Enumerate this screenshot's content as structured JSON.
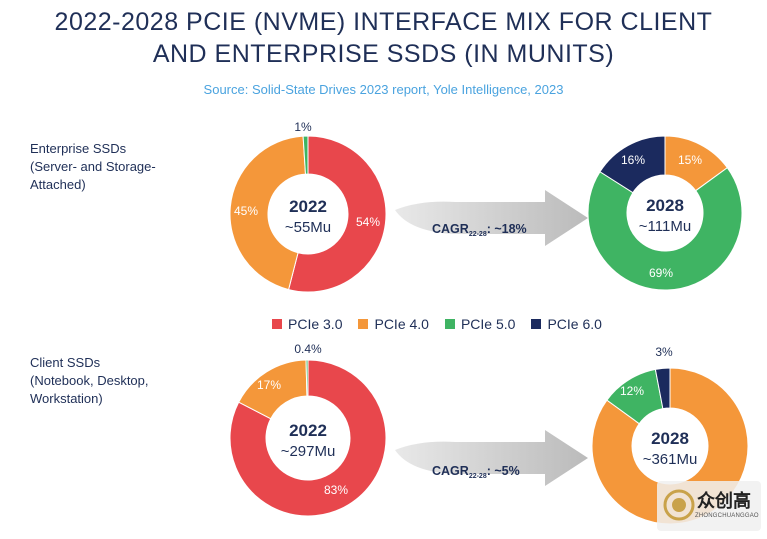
{
  "header": {
    "title_line1": "2022-2028 PCIE (NVME) INTERFACE MIX FOR CLIENT",
    "title_line2": "AND ENTERPRISE SSDS (IN MUNITS)",
    "source": "Source: Solid-State Drives 2023 report, Yole Intelligence, 2023"
  },
  "segments": {
    "enterprise": [
      "Enterprise SSDs",
      "(Server- and Storage-",
      "Attached)"
    ],
    "client": [
      "Client SSDs",
      "(Notebook, Desktop,",
      "Workstation)"
    ]
  },
  "legend": [
    {
      "label": "PCIe 3.0",
      "color": "#e8474c"
    },
    {
      "label": "PCIe 4.0",
      "color": "#f4973a"
    },
    {
      "label": "PCIe 5.0",
      "color": "#3fb463"
    },
    {
      "label": "PCIe 6.0",
      "color": "#1b2a5e"
    }
  ],
  "chart_data": [
    {
      "type": "pie",
      "name": "enterprise-2022",
      "center_title": "2022",
      "center_sub": "~55Mu",
      "slices": [
        {
          "label": "PCIe 3.0",
          "value": 54,
          "display": "54%"
        },
        {
          "label": "PCIe 4.0",
          "value": 45,
          "display": "45%"
        },
        {
          "label": "PCIe 5.0",
          "value": 1,
          "display": "1%"
        }
      ]
    },
    {
      "type": "pie",
      "name": "enterprise-2028",
      "center_title": "2028",
      "center_sub": "~111Mu",
      "slices": [
        {
          "label": "PCIe 4.0",
          "value": 15,
          "display": "15%"
        },
        {
          "label": "PCIe 5.0",
          "value": 69,
          "display": "69%"
        },
        {
          "label": "PCIe 6.0",
          "value": 16,
          "display": "16%"
        }
      ]
    },
    {
      "type": "pie",
      "name": "client-2022",
      "center_title": "2022",
      "center_sub": "~297Mu",
      "slices": [
        {
          "label": "PCIe 3.0",
          "value": 82.6,
          "display": "83%"
        },
        {
          "label": "PCIe 4.0",
          "value": 17,
          "display": "17%"
        },
        {
          "label": "PCIe 5.0",
          "value": 0.4,
          "display": "0.4%"
        }
      ]
    },
    {
      "type": "pie",
      "name": "client-2028",
      "center_title": "2028",
      "center_sub": "~361Mu",
      "slices": [
        {
          "label": "PCIe 4.0",
          "value": 85,
          "display": ""
        },
        {
          "label": "PCIe 5.0",
          "value": 12,
          "display": "12%"
        },
        {
          "label": "PCIe 6.0",
          "value": 3,
          "display": "3%"
        }
      ]
    }
  ],
  "cagr": [
    {
      "prefix": "CAGR",
      "sub": "22-28",
      "suffix": ": ~18%"
    },
    {
      "prefix": "CAGR",
      "sub": "22-28",
      "suffix": ": ~5%"
    }
  ],
  "watermark": {
    "text": "众创高",
    "sub": "ZHONGCHUANGGAO"
  }
}
